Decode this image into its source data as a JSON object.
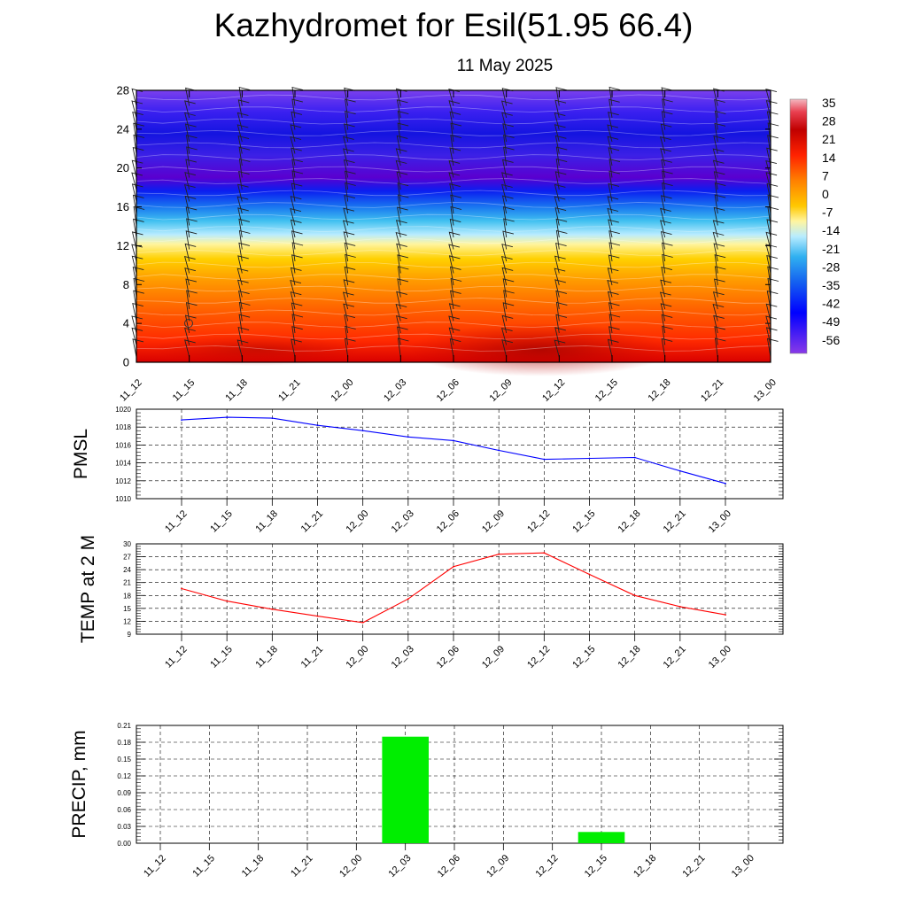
{
  "header": {
    "title": "Kazhydromet for Esil(51.95 66.4)",
    "date": "11 May 2025"
  },
  "colors": {
    "pmsl_line": "#0000ff",
    "temp_line": "#ff0000",
    "precip_bar": "#00ee00",
    "grid": "#000000"
  },
  "chart_data": [
    {
      "type": "heatmap",
      "title": "",
      "x": [
        "11_12",
        "11_15",
        "11_18",
        "11_21",
        "12_00",
        "12_03",
        "12_06",
        "12_09",
        "12_12",
        "12_15",
        "12_18",
        "12_21",
        "13_00"
      ],
      "yticks": [
        0,
        4,
        8,
        12,
        16,
        20,
        24,
        28
      ],
      "ylim": [
        0,
        28
      ],
      "colorbar": {
        "labels": [
          "35",
          "28",
          "21",
          "14",
          "7",
          "0",
          "-7",
          "-14",
          "-21",
          "-28",
          "-35",
          "-42",
          "-49",
          "-56"
        ],
        "stops": [
          "#f0b0b8",
          "#c80000",
          "#ff2a00",
          "#ff7a00",
          "#ffbe00",
          "#fff39a",
          "#8ae0ff",
          "#28b4f0",
          "#1464f0",
          "#0000ff",
          "#3c00d2",
          "#8232e6"
        ]
      },
      "overlay": "wind barbs and contour lines"
    },
    {
      "type": "line",
      "ylabel": "PMSL",
      "x": [
        "11_12",
        "11_15",
        "11_18",
        "11_21",
        "12_00",
        "12_03",
        "12_06",
        "12_09",
        "12_12",
        "12_15",
        "12_18",
        "12_21",
        "13_00"
      ],
      "y": [
        1018.8,
        1019.1,
        1019.0,
        1018.2,
        1017.6,
        1016.9,
        1016.5,
        1015.4,
        1014.4,
        1014.5,
        1014.6,
        1013.1,
        1011.7
      ],
      "yticks": [
        "1010",
        "1012",
        "1014",
        "1016",
        "1018",
        "1020"
      ],
      "ylim": [
        1010,
        1020
      ],
      "grid": true
    },
    {
      "type": "line",
      "ylabel": "TEMP at 2 M",
      "x": [
        "11_12",
        "11_15",
        "11_18",
        "11_21",
        "12_00",
        "12_03",
        "12_06",
        "12_09",
        "12_12",
        "12_15",
        "12_18",
        "12_21",
        "13_00"
      ],
      "y": [
        19.6,
        16.7,
        14.8,
        13.2,
        11.7,
        17.2,
        24.7,
        27.6,
        27.9,
        22.9,
        18.0,
        15.4,
        13.5
      ],
      "yticks": [
        "9",
        "12",
        "15",
        "18",
        "21",
        "24",
        "27",
        "30"
      ],
      "ylim": [
        9,
        30
      ],
      "grid": true
    },
    {
      "type": "bar",
      "ylabel": "PRECIP, mm",
      "categories": [
        "11_12",
        "11_15",
        "11_18",
        "11_21",
        "12_00",
        "12_03",
        "12_06",
        "12_09",
        "12_12",
        "12_15",
        "12_18",
        "12_21",
        "13_00"
      ],
      "values": [
        0,
        0,
        0,
        0,
        0,
        0.19,
        0,
        0,
        0,
        0.02,
        0,
        0,
        0
      ],
      "yticks": [
        "0.00",
        "0.03",
        "0.06",
        "0.09",
        "0.12",
        "0.15",
        "0.18",
        "0.21"
      ],
      "ylim": [
        0,
        0.21
      ],
      "grid": true
    }
  ]
}
